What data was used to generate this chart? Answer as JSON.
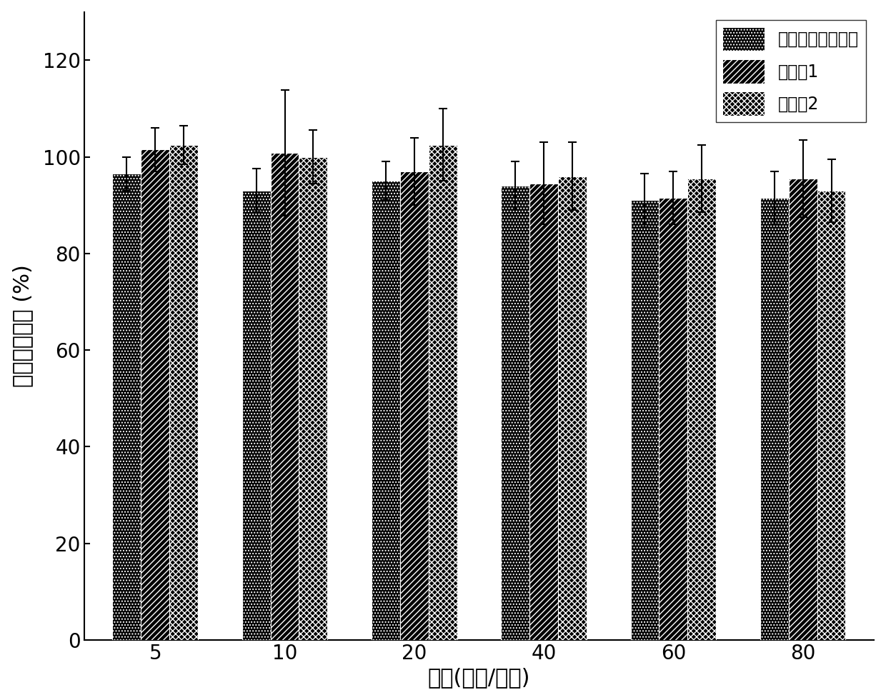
{
  "categories": [
    "5",
    "10",
    "20",
    "40",
    "60",
    "80"
  ],
  "series": [
    {
      "label": "二元基因递送系统",
      "values": [
        96.5,
        93.0,
        95.0,
        94.0,
        91.0,
        91.5
      ],
      "errors": [
        3.5,
        4.5,
        4.0,
        5.0,
        5.5,
        5.5
      ]
    },
    {
      "label": "实施例1",
      "values": [
        101.5,
        100.8,
        97.0,
        94.5,
        91.5,
        95.5
      ],
      "errors": [
        4.5,
        13.0,
        7.0,
        8.5,
        5.5,
        8.0
      ]
    },
    {
      "label": "实施例2",
      "values": [
        102.5,
        100.0,
        102.5,
        96.0,
        95.5,
        93.0
      ],
      "errors": [
        4.0,
        5.5,
        7.5,
        7.0,
        7.0,
        6.5
      ]
    }
  ],
  "xlabel": "浓度(微克/毫升)",
  "ylabel": "相对细胞活性 (%)",
  "ylim": [
    0,
    130
  ],
  "yticks": [
    0,
    20,
    40,
    60,
    80,
    100,
    120
  ],
  "bar_width": 0.22,
  "figsize": [
    12.4,
    9.8
  ],
  "dpi": 100,
  "legend_loc": "upper right",
  "xlabel_fontsize": 22,
  "ylabel_fontsize": 22,
  "tick_fontsize": 20,
  "legend_fontsize": 17,
  "capsize": 4,
  "hatch_configs": [
    {
      "hatch": "....",
      "facecolor": "#000000",
      "edgecolor": "#ffffff"
    },
    {
      "hatch": "////",
      "facecolor": "#000000",
      "edgecolor": "#ffffff"
    },
    {
      "hatch": "xxxx",
      "facecolor": "#000000",
      "edgecolor": "#ffffff"
    }
  ]
}
